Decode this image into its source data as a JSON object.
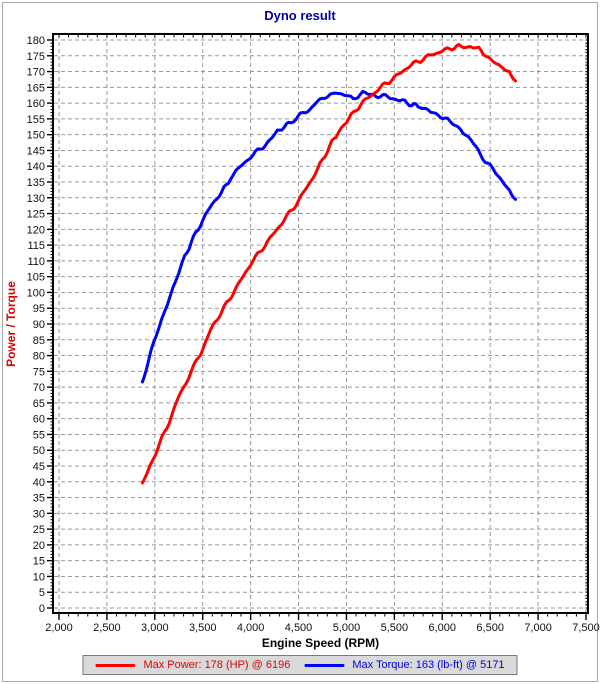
{
  "window": {
    "title": "Dyno result"
  },
  "colors": {
    "title": "#0000a8",
    "power": "#ff0000",
    "torque": "#0000ff",
    "ylabel": "#dd0000",
    "grid": "#999999",
    "axis": "#000000",
    "legend_bg": "#d9d9d9",
    "legend_border": "#7a7a7a"
  },
  "chart_data": {
    "type": "line",
    "title": "Dyno result",
    "xlabel": "Engine Speed (RPM)",
    "ylabel": "Power / Torque",
    "xlim": [
      2000,
      7500
    ],
    "ylim": [
      0,
      180
    ],
    "grid": "dashed",
    "legend_position": "bottom",
    "x_ticks": [
      {
        "value": 2000,
        "label": "2,000"
      },
      {
        "value": 2500,
        "label": "2,500"
      },
      {
        "value": 3000,
        "label": "3,000"
      },
      {
        "value": 3500,
        "label": "3,500"
      },
      {
        "value": 4000,
        "label": "4,000"
      },
      {
        "value": 4500,
        "label": "4,500"
      },
      {
        "value": 5000,
        "label": "5,000"
      },
      {
        "value": 5500,
        "label": "5,500"
      },
      {
        "value": 6000,
        "label": "6,000"
      },
      {
        "value": 6500,
        "label": "6,500"
      },
      {
        "value": 7000,
        "label": "7,000"
      },
      {
        "value": 7500,
        "label": "7,500"
      }
    ],
    "y_ticks": [
      0,
      5,
      10,
      15,
      20,
      25,
      30,
      35,
      40,
      45,
      50,
      55,
      60,
      65,
      70,
      75,
      80,
      85,
      90,
      95,
      100,
      105,
      110,
      115,
      120,
      125,
      130,
      135,
      140,
      145,
      150,
      155,
      160,
      165,
      170,
      175,
      180
    ],
    "x_minor_step": 100,
    "y_minor_step": 1,
    "series": [
      {
        "name": "Power",
        "unit": "HP",
        "color": "#ff0000",
        "max": {
          "value": 178,
          "rpm": 6196
        },
        "points": [
          [
            2870,
            39
          ],
          [
            2950,
            45
          ],
          [
            3050,
            52
          ],
          [
            3150,
            59
          ],
          [
            3250,
            67
          ],
          [
            3350,
            73
          ],
          [
            3430,
            78
          ],
          [
            3500,
            82
          ],
          [
            3580,
            88
          ],
          [
            3700,
            94
          ],
          [
            3800,
            99
          ],
          [
            3900,
            104
          ],
          [
            4000,
            109
          ],
          [
            4100,
            113
          ],
          [
            4200,
            117
          ],
          [
            4300,
            121
          ],
          [
            4400,
            125
          ],
          [
            4500,
            129
          ],
          [
            4600,
            134
          ],
          [
            4700,
            139
          ],
          [
            4800,
            145
          ],
          [
            4915,
            151
          ],
          [
            5000,
            154
          ],
          [
            5100,
            158
          ],
          [
            5200,
            161
          ],
          [
            5300,
            163.5
          ],
          [
            5400,
            166
          ],
          [
            5500,
            168
          ],
          [
            5600,
            170.5
          ],
          [
            5700,
            172.5
          ],
          [
            5800,
            174
          ],
          [
            5900,
            175.5
          ],
          [
            6000,
            176.5
          ],
          [
            6100,
            177.5
          ],
          [
            6196,
            178
          ],
          [
            6300,
            178
          ],
          [
            6380,
            177
          ],
          [
            6450,
            175.5
          ],
          [
            6500,
            173.5
          ],
          [
            6560,
            172.5
          ],
          [
            6620,
            171
          ],
          [
            6700,
            169.5
          ],
          [
            6764,
            167
          ]
        ]
      },
      {
        "name": "Torque",
        "unit": "lb-ft",
        "color": "#0000ff",
        "max": {
          "value": 163,
          "rpm": 5171
        },
        "points": [
          [
            2870,
            71
          ],
          [
            2910,
            76
          ],
          [
            2960,
            81
          ],
          [
            3010,
            86
          ],
          [
            3070,
            91
          ],
          [
            3130,
            96
          ],
          [
            3190,
            101
          ],
          [
            3250,
            106
          ],
          [
            3310,
            111
          ],
          [
            3380,
            116
          ],
          [
            3450,
            120
          ],
          [
            3500,
            123
          ],
          [
            3600,
            128
          ],
          [
            3700,
            132
          ],
          [
            3790,
            136
          ],
          [
            3900,
            140
          ],
          [
            4000,
            143
          ],
          [
            4100,
            145.5
          ],
          [
            4200,
            148
          ],
          [
            4280,
            151
          ],
          [
            4350,
            152.5
          ],
          [
            4420,
            154
          ],
          [
            4500,
            156
          ],
          [
            4620,
            158
          ],
          [
            4720,
            161
          ],
          [
            4830,
            163
          ],
          [
            4950,
            163
          ],
          [
            5070,
            161.5
          ],
          [
            5171,
            163
          ],
          [
            5280,
            162.5
          ],
          [
            5430,
            162
          ],
          [
            5560,
            161
          ],
          [
            5680,
            159.5
          ],
          [
            5770,
            159
          ],
          [
            5880,
            157
          ],
          [
            5980,
            156
          ],
          [
            6080,
            154
          ],
          [
            6190,
            152
          ],
          [
            6300,
            148.5
          ],
          [
            6400,
            143.5
          ],
          [
            6500,
            140
          ],
          [
            6600,
            136.5
          ],
          [
            6700,
            132
          ],
          [
            6764,
            129.5
          ]
        ]
      }
    ],
    "legend": [
      {
        "label": "Max Power: 178 (HP) @ 6196",
        "series": "Power",
        "color": "#ff0000"
      },
      {
        "label": "Max Torque: 163 (lb-ft) @ 5171",
        "series": "Torque",
        "color": "#0000ff"
      }
    ]
  }
}
